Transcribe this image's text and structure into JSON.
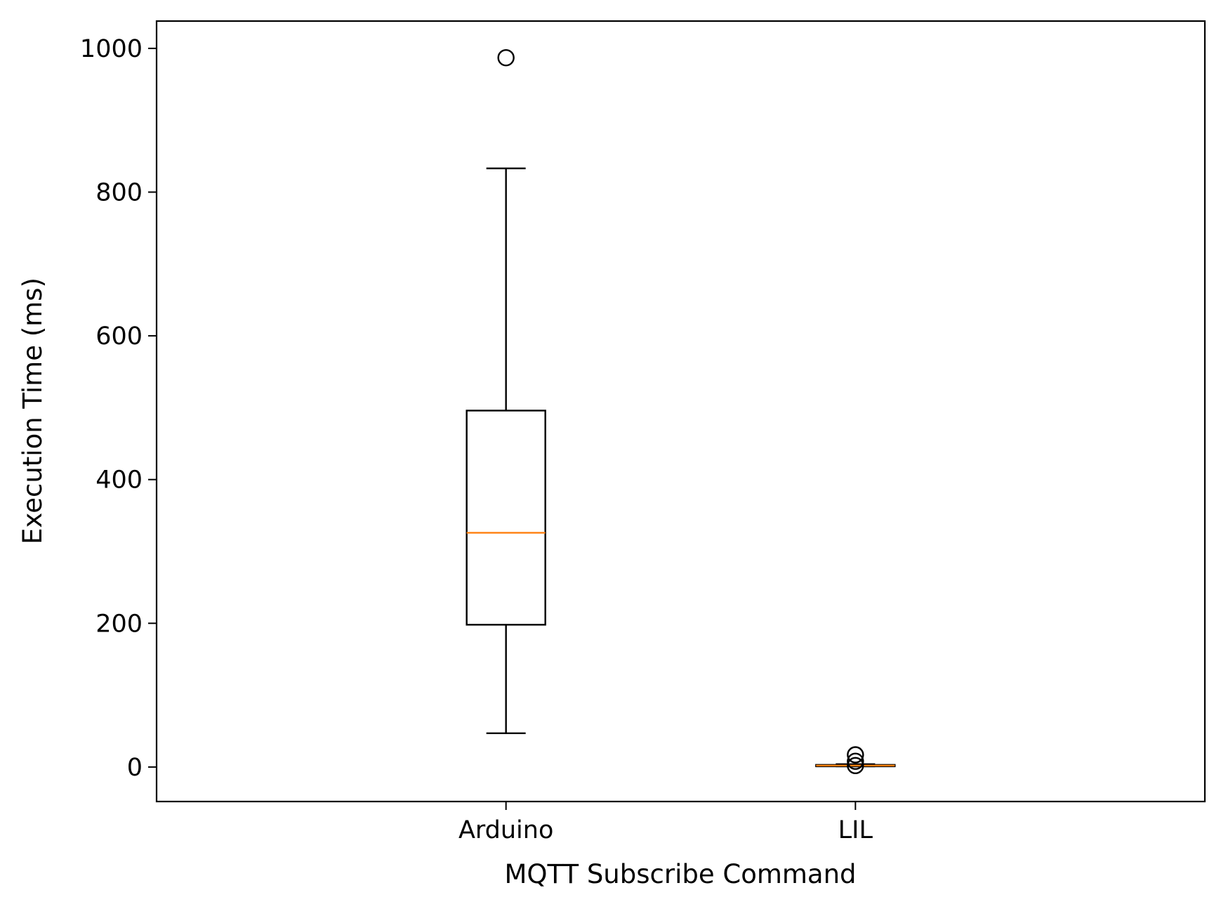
{
  "chart_data": {
    "type": "box",
    "title": "",
    "xlabel": "MQTT Subscribe Command",
    "ylabel": "Execution Time (ms)",
    "categories": [
      "Arduino",
      "LIL"
    ],
    "ylim": [
      -48,
      1038
    ],
    "yticks": [
      0,
      200,
      400,
      600,
      800,
      1000
    ],
    "ytick_labels": [
      "0",
      "200",
      "400",
      "600",
      "800",
      "1000"
    ],
    "grid": false,
    "legend": "none",
    "boxes": [
      {
        "category": "Arduino",
        "whisker_low": 47,
        "q1": 198,
        "median": 326,
        "q3": 496,
        "whisker_high": 833,
        "outliers": [
          987
        ]
      },
      {
        "category": "LIL",
        "whisker_low": 1,
        "q1": 1,
        "median": 2,
        "q3": 3,
        "whisker_high": 4,
        "outliers": [
          17,
          8,
          2
        ]
      }
    ],
    "colors": {
      "box": "#000000",
      "median": "#ff7f0e",
      "axes": "#000000",
      "background": "#ffffff"
    }
  }
}
